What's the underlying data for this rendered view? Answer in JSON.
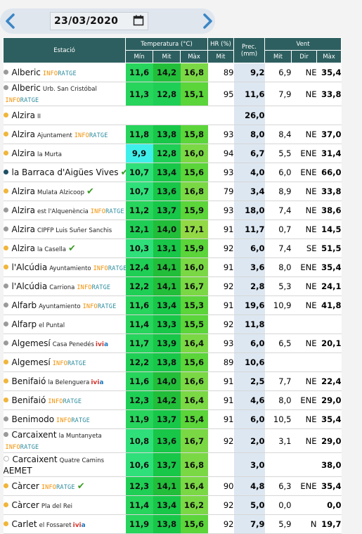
{
  "date": "23/03/2020",
  "icons": {
    "prev": "chevron-left-icon",
    "next": "chevron-right-icon",
    "calendar": "calendar-icon",
    "check": "check-icon"
  },
  "colors": {
    "header": "#2e5f60",
    "precip": "#dde7f2",
    "info_orange": "#f18f00",
    "info_teal": "#2d8c9e"
  },
  "headers": {
    "station": "Estació",
    "temp": "Temperatura (°C)",
    "hr": "HR (%)",
    "prec": "Prec. (mm)",
    "wind": "Vent",
    "min": "Mín",
    "mit": "Mit",
    "max": "Màx",
    "hr_mit": "Mit",
    "w_mit": "Mit",
    "w_dir": "Dir",
    "w_max": "Màx"
  },
  "rows": [
    {
      "dot": "gray",
      "name": "Alberic",
      "sub": "",
      "info": "INFORATGE",
      "ivia": "",
      "check": false,
      "wrap": false,
      "tmin": "11,6",
      "tmit": "14,2",
      "tmax": "16,8",
      "hr": "89",
      "prec": "9,2",
      "wmit": "6,9",
      "wdir": "NE",
      "wmax": "35,4"
    },
    {
      "dot": "gray",
      "name": "Alberic",
      "sub": "Urb. San Cristóbal",
      "info": "INFORATGE",
      "ivia": "",
      "check": false,
      "wrap": true,
      "tmin": "11,3",
      "tmit": "12,8",
      "tmax": "15,1",
      "hr": "95",
      "prec": "11,6",
      "wmit": "7,9",
      "wdir": "NE",
      "wmax": "33,8"
    },
    {
      "dot": "orange",
      "name": "Alzira",
      "sub": "II",
      "info": "",
      "ivia": "",
      "check": false,
      "wrap": false,
      "tmin": "",
      "tmit": "",
      "tmax": "",
      "hr": "",
      "prec": "26,0",
      "wmit": "",
      "wdir": "",
      "wmax": ""
    },
    {
      "dot": "orange",
      "name": "Alzira",
      "sub": "Ajuntament",
      "info": "INFORATGE",
      "ivia": "",
      "check": false,
      "wrap": false,
      "tmin": "11,8",
      "tmit": "13,8",
      "tmax": "15,8",
      "hr": "93",
      "prec": "8,0",
      "wmit": "8,4",
      "wdir": "NE",
      "wmax": "37,0"
    },
    {
      "dot": "orange",
      "name": "Alzira",
      "sub": "la Murta",
      "info": "",
      "ivia": "",
      "check": false,
      "wrap": false,
      "tmin": "9,9",
      "tmit": "12,8",
      "tmax": "16,0",
      "hr": "94",
      "prec": "6,7",
      "wmit": "5,5",
      "wdir": "ENE",
      "wmax": "31,4"
    },
    {
      "dot": "navy",
      "name": "la Barraca d'Aigües Vives",
      "sub": "",
      "info": "",
      "ivia": "",
      "check": true,
      "wrap": false,
      "tmin": "10,7",
      "tmit": "13,4",
      "tmax": "15,6",
      "hr": "93",
      "prec": "4,0",
      "wmit": "6,0",
      "wdir": "ENE",
      "wmax": "66,0"
    },
    {
      "dot": "orange",
      "name": "Alzira",
      "sub": "Mulata Alzicoop",
      "info": "",
      "ivia": "",
      "check": true,
      "wrap": false,
      "tmin": "10,7",
      "tmit": "13,6",
      "tmax": "16,8",
      "hr": "79",
      "prec": "3,4",
      "wmit": "8,9",
      "wdir": "NE",
      "wmax": "33,8"
    },
    {
      "dot": "gray",
      "name": "Alzira",
      "sub": "est l'Alquenència",
      "info": "INFORATGE",
      "ivia": "",
      "check": false,
      "wrap": false,
      "tmin": "11,2",
      "tmit": "13,7",
      "tmax": "15,9",
      "hr": "93",
      "prec": "18,0",
      "wmit": "7,4",
      "wdir": "NE",
      "wmax": "38,6"
    },
    {
      "dot": "gray",
      "name": "Alzira",
      "sub": "CIPFP Luis Suñer Sanchis",
      "info": "",
      "ivia": "",
      "check": false,
      "wrap": false,
      "tmin": "12,1",
      "tmit": "14,0",
      "tmax": "17,1",
      "hr": "91",
      "prec": "11,7",
      "wmit": "0,7",
      "wdir": "NE",
      "wmax": "14,5"
    },
    {
      "dot": "orange",
      "name": "Alzira",
      "sub": "la Casella",
      "info": "",
      "ivia": "",
      "check": true,
      "wrap": false,
      "tmin": "10,3",
      "tmit": "13,1",
      "tmax": "15,9",
      "hr": "92",
      "prec": "6,0",
      "wmit": "7,4",
      "wdir": "SE",
      "wmax": "51,5"
    },
    {
      "dot": "orange",
      "name": "l'Alcúdia",
      "sub": "Ayuntamiento",
      "info": "INFORATGE",
      "ivia": "",
      "check": false,
      "wrap": false,
      "tmin": "12,4",
      "tmit": "14,1",
      "tmax": "16,0",
      "hr": "91",
      "prec": "3,6",
      "wmit": "8,0",
      "wdir": "ENE",
      "wmax": "35,4"
    },
    {
      "dot": "gray",
      "name": "l'Alcúdia",
      "sub": "Carriona",
      "info": "INFORATGE",
      "ivia": "",
      "check": false,
      "wrap": false,
      "tmin": "12,2",
      "tmit": "14,1",
      "tmax": "16,7",
      "hr": "92",
      "prec": "2,8",
      "wmit": "5,3",
      "wdir": "NE",
      "wmax": "24,1"
    },
    {
      "dot": "gray",
      "name": "Alfarb",
      "sub": "Ayuntamiento",
      "info": "INFORATGE",
      "ivia": "",
      "check": false,
      "wrap": false,
      "tmin": "11,6",
      "tmit": "13,4",
      "tmax": "15,3",
      "hr": "91",
      "prec": "19,6",
      "wmit": "10,9",
      "wdir": "NE",
      "wmax": "41,8"
    },
    {
      "dot": "gray",
      "name": "Alfarp",
      "sub": "el Puntal",
      "info": "",
      "ivia": "",
      "check": false,
      "wrap": false,
      "tmin": "11,4",
      "tmit": "13,3",
      "tmax": "15,5",
      "hr": "92",
      "prec": "11,8",
      "wmit": "",
      "wdir": "",
      "wmax": ""
    },
    {
      "dot": "gray",
      "name": "Algemesí",
      "sub": "Casa Penedés",
      "info": "",
      "ivia": "ivia",
      "check": false,
      "wrap": false,
      "tmin": "11,7",
      "tmit": "13,9",
      "tmax": "16,4",
      "hr": "93",
      "prec": "6,0",
      "wmit": "6,5",
      "wdir": "NE",
      "wmax": "20,1"
    },
    {
      "dot": "orange",
      "name": "Algemesí",
      "sub": "",
      "info": "INFORATGE",
      "ivia": "",
      "check": false,
      "wrap": false,
      "tmin": "12,2",
      "tmit": "13,8",
      "tmax": "15,6",
      "hr": "89",
      "prec": "10,6",
      "wmit": "",
      "wdir": "",
      "wmax": ""
    },
    {
      "dot": "orange",
      "name": "Benifaió",
      "sub": "la Belenguera",
      "info": "",
      "ivia": "ivia",
      "check": false,
      "wrap": false,
      "tmin": "11,6",
      "tmit": "14,0",
      "tmax": "16,6",
      "hr": "91",
      "prec": "2,5",
      "wmit": "7,7",
      "wdir": "NE",
      "wmax": "22,4"
    },
    {
      "dot": "orange",
      "name": "Benifaió",
      "sub": "",
      "info": "INFORATGE",
      "ivia": "",
      "check": false,
      "wrap": false,
      "tmin": "12,3",
      "tmax": "16,4",
      "tmit": "14,2",
      "hr": "91",
      "prec": "4,6",
      "wmit": "8,0",
      "wdir": "ENE",
      "wmax": "29,0"
    },
    {
      "dot": "gray",
      "name": "Benimodo",
      "sub": "",
      "info": "INFORATGE",
      "ivia": "",
      "check": false,
      "wrap": false,
      "tmin": "11,9",
      "tmit": "13,7",
      "tmax": "15,4",
      "hr": "91",
      "prec": "6,0",
      "wmit": "10,5",
      "wdir": "NE",
      "wmax": "35,4"
    },
    {
      "dot": "gray",
      "name": "Carcaixent",
      "sub": "la Muntanyeta",
      "info": "INFORATGE",
      "ivia": "",
      "check": false,
      "wrap": true,
      "tmin": "10,8",
      "tmit": "13,6",
      "tmax": "16,7",
      "hr": "92",
      "prec": "2,0",
      "wmit": "3,1",
      "wdir": "NE",
      "wmax": "29,0"
    },
    {
      "dot": "hollow",
      "name": "Carcaixent",
      "sub": "Quatre Camins",
      "info": "",
      "ivia": "",
      "check": false,
      "wrap": true,
      "line2": "AEMET",
      "tmin": "10,6",
      "tmit": "13,7",
      "tmax": "16,8",
      "hr": "",
      "prec": "3,0",
      "wmit": "",
      "wdir": "",
      "wmax": "38,0"
    },
    {
      "dot": "orange",
      "name": "Càrcer",
      "sub": "",
      "info": "INFORATGE",
      "ivia": "",
      "check": true,
      "wrap": false,
      "tmin": "12,3",
      "tmit": "14,1",
      "tmax": "16,4",
      "hr": "90",
      "prec": "4,8",
      "wmit": "6,3",
      "wdir": "ENE",
      "wmax": "35,4"
    },
    {
      "dot": "orange",
      "name": "Càrcer",
      "sub": "Pla del Rei",
      "info": "",
      "ivia": "",
      "check": false,
      "wrap": false,
      "tmin": "11,4",
      "tmit": "13,4",
      "tmax": "16,2",
      "hr": "92",
      "prec": "5,0",
      "wmit": "0,0",
      "wdir": "",
      "wmax": "0,0"
    },
    {
      "dot": "orange",
      "name": "Carlet",
      "sub": "el Fossaret",
      "info": "",
      "ivia": "ivia",
      "check": false,
      "wrap": false,
      "tmin": "11,9",
      "tmit": "13,8",
      "tmax": "15,6",
      "hr": "92",
      "prec": "7,9",
      "wmit": "5,9",
      "wdir": "N",
      "wmax": "19,7"
    }
  ]
}
